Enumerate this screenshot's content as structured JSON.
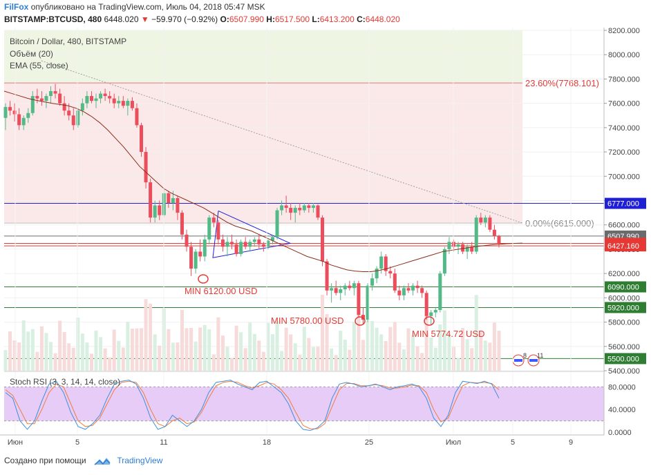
{
  "header": {
    "brand": "FilFox",
    "published": "опубликовано на TradingView.com, Июль 04, 2018 05:47 MSK",
    "symbol": "BITSTAMP:BTCUSD, 480",
    "last": "6448.020",
    "change_arrow": "▼",
    "change": "−59.970 (−0.92%)",
    "o_label": "O:",
    "o_value": "6507.990",
    "h_label": "H:",
    "h_value": "6517.500",
    "l_label": "L:",
    "l_value": "6413.200",
    "c_label": "C:",
    "c_value": "6448.020"
  },
  "legend": {
    "title": "Bitcoin / Dollar, 480, BITSTAMP",
    "volume": "Объём (20)",
    "ema": "EMA (55, close)",
    "stoch": "Stoch RSI (3, 3, 14, 14, close)"
  },
  "footer": {
    "made_with": "Создано при помощи",
    "tv": "TradingView"
  },
  "colors": {
    "up": "#53b987",
    "down": "#eb4d5c",
    "ema": "#8b2c1a",
    "blue_line": "#1f1fd6",
    "green_line": "#2e7d32",
    "red_line": "#e53935",
    "fib_fill_top": "#eef6e3",
    "fib_fill_bottom": "#fbe9e9",
    "stoch_fill": "#e6ccf7"
  },
  "chart_data": [
    {
      "type": "candlestick",
      "title": "Bitcoin / Dollar, 480, BITSTAMP",
      "ylim": [
        5400,
        8200
      ],
      "y_ticks": [
        "8200.000",
        "8000.000",
        "7800.000",
        "7600.000",
        "7400.000",
        "7200.000",
        "7000.000",
        "6800.000",
        "6600.000",
        "6400.000",
        "6200.000",
        "6000.000",
        "5800.000",
        "5600.000",
        "5400.000"
      ],
      "x_ticks": [
        "Июн",
        "5",
        "11",
        "18",
        "25",
        "Июл",
        "5",
        "9"
      ],
      "candles": [
        {
          "o": 7480,
          "h": 7600,
          "l": 7380,
          "c": 7570
        },
        {
          "o": 7570,
          "h": 7620,
          "l": 7500,
          "c": 7540
        },
        {
          "o": 7540,
          "h": 7600,
          "l": 7450,
          "c": 7510
        },
        {
          "o": 7510,
          "h": 7560,
          "l": 7380,
          "c": 7420
        },
        {
          "o": 7420,
          "h": 7500,
          "l": 7380,
          "c": 7480
        },
        {
          "o": 7480,
          "h": 7560,
          "l": 7440,
          "c": 7520
        },
        {
          "o": 7520,
          "h": 7700,
          "l": 7500,
          "c": 7660
        },
        {
          "o": 7660,
          "h": 7720,
          "l": 7600,
          "c": 7640
        },
        {
          "o": 7640,
          "h": 7700,
          "l": 7580,
          "c": 7620
        },
        {
          "o": 7620,
          "h": 7680,
          "l": 7560,
          "c": 7660
        },
        {
          "o": 7660,
          "h": 7740,
          "l": 7600,
          "c": 7700
        },
        {
          "o": 7700,
          "h": 7760,
          "l": 7640,
          "c": 7680
        },
        {
          "o": 7680,
          "h": 7720,
          "l": 7580,
          "c": 7600
        },
        {
          "o": 7600,
          "h": 7660,
          "l": 7500,
          "c": 7540
        },
        {
          "o": 7540,
          "h": 7600,
          "l": 7460,
          "c": 7500
        },
        {
          "o": 7500,
          "h": 7560,
          "l": 7380,
          "c": 7420
        },
        {
          "o": 7420,
          "h": 7560,
          "l": 7400,
          "c": 7540
        },
        {
          "o": 7540,
          "h": 7640,
          "l": 7500,
          "c": 7600
        },
        {
          "o": 7600,
          "h": 7700,
          "l": 7560,
          "c": 7660
        },
        {
          "o": 7660,
          "h": 7700,
          "l": 7600,
          "c": 7620
        },
        {
          "o": 7620,
          "h": 7680,
          "l": 7560,
          "c": 7640
        },
        {
          "o": 7640,
          "h": 7700,
          "l": 7600,
          "c": 7680
        },
        {
          "o": 7680,
          "h": 7720,
          "l": 7620,
          "c": 7660
        },
        {
          "o": 7660,
          "h": 7700,
          "l": 7600,
          "c": 7640
        },
        {
          "o": 7640,
          "h": 7680,
          "l": 7560,
          "c": 7600
        },
        {
          "o": 7600,
          "h": 7660,
          "l": 7560,
          "c": 7620
        },
        {
          "o": 7620,
          "h": 7660,
          "l": 7560,
          "c": 7580
        },
        {
          "o": 7580,
          "h": 7640,
          "l": 7500,
          "c": 7620
        },
        {
          "o": 7620,
          "h": 7650,
          "l": 7540,
          "c": 7560
        },
        {
          "o": 7560,
          "h": 7600,
          "l": 7400,
          "c": 7420
        },
        {
          "o": 7420,
          "h": 7440,
          "l": 7160,
          "c": 7200
        },
        {
          "o": 7200,
          "h": 7240,
          "l": 6900,
          "c": 6950
        },
        {
          "o": 6950,
          "h": 6980,
          "l": 6620,
          "c": 6660
        },
        {
          "o": 6660,
          "h": 6800,
          "l": 6620,
          "c": 6760
        },
        {
          "o": 6760,
          "h": 6800,
          "l": 6640,
          "c": 6680
        },
        {
          "o": 6680,
          "h": 6900,
          "l": 6660,
          "c": 6860
        },
        {
          "o": 6860,
          "h": 6880,
          "l": 6740,
          "c": 6780
        },
        {
          "o": 6780,
          "h": 6880,
          "l": 6720,
          "c": 6820
        },
        {
          "o": 6820,
          "h": 6840,
          "l": 6640,
          "c": 6700
        },
        {
          "o": 6700,
          "h": 6720,
          "l": 6480,
          "c": 6520
        },
        {
          "o": 6520,
          "h": 6560,
          "l": 6380,
          "c": 6420
        },
        {
          "o": 6420,
          "h": 6460,
          "l": 6180,
          "c": 6240
        },
        {
          "o": 6240,
          "h": 6400,
          "l": 6200,
          "c": 6380
        },
        {
          "o": 6380,
          "h": 6480,
          "l": 6300,
          "c": 6340
        },
        {
          "o": 6340,
          "h": 6520,
          "l": 6300,
          "c": 6480
        },
        {
          "o": 6480,
          "h": 6680,
          "l": 6440,
          "c": 6660
        },
        {
          "o": 6660,
          "h": 6700,
          "l": 6580,
          "c": 6620
        },
        {
          "o": 6620,
          "h": 6640,
          "l": 6440,
          "c": 6480
        },
        {
          "o": 6480,
          "h": 6520,
          "l": 6380,
          "c": 6420
        },
        {
          "o": 6420,
          "h": 6500,
          "l": 6340,
          "c": 6460
        },
        {
          "o": 6460,
          "h": 6520,
          "l": 6400,
          "c": 6440
        },
        {
          "o": 6440,
          "h": 6480,
          "l": 6340,
          "c": 6360
        },
        {
          "o": 6360,
          "h": 6480,
          "l": 6340,
          "c": 6460
        },
        {
          "o": 6460,
          "h": 6500,
          "l": 6400,
          "c": 6420
        },
        {
          "o": 6420,
          "h": 6480,
          "l": 6380,
          "c": 6460
        },
        {
          "o": 6460,
          "h": 6500,
          "l": 6420,
          "c": 6480
        },
        {
          "o": 6480,
          "h": 6520,
          "l": 6400,
          "c": 6440
        },
        {
          "o": 6440,
          "h": 6460,
          "l": 6380,
          "c": 6420
        },
        {
          "o": 6420,
          "h": 6480,
          "l": 6400,
          "c": 6470
        },
        {
          "o": 6470,
          "h": 6520,
          "l": 6440,
          "c": 6500
        },
        {
          "o": 6500,
          "h": 6740,
          "l": 6480,
          "c": 6720
        },
        {
          "o": 6720,
          "h": 6800,
          "l": 6680,
          "c": 6760
        },
        {
          "o": 6760,
          "h": 6840,
          "l": 6700,
          "c": 6740
        },
        {
          "o": 6740,
          "h": 6780,
          "l": 6640,
          "c": 6700
        },
        {
          "o": 6700,
          "h": 6760,
          "l": 6620,
          "c": 6740
        },
        {
          "o": 6740,
          "h": 6780,
          "l": 6680,
          "c": 6720
        },
        {
          "o": 6720,
          "h": 6780,
          "l": 6700,
          "c": 6760
        },
        {
          "o": 6760,
          "h": 6780,
          "l": 6700,
          "c": 6740
        },
        {
          "o": 6740,
          "h": 6780,
          "l": 6700,
          "c": 6760
        },
        {
          "o": 6760,
          "h": 6770,
          "l": 6640,
          "c": 6660
        },
        {
          "o": 6660,
          "h": 6680,
          "l": 6260,
          "c": 6300
        },
        {
          "o": 6300,
          "h": 6320,
          "l": 6020,
          "c": 6060
        },
        {
          "o": 6060,
          "h": 6120,
          "l": 5960,
          "c": 6080
        },
        {
          "o": 6080,
          "h": 6140,
          "l": 6020,
          "c": 6040
        },
        {
          "o": 6040,
          "h": 6100,
          "l": 5980,
          "c": 6070
        },
        {
          "o": 6070,
          "h": 6120,
          "l": 6020,
          "c": 6100
        },
        {
          "o": 6100,
          "h": 6140,
          "l": 6060,
          "c": 6080
        },
        {
          "o": 6080,
          "h": 6140,
          "l": 6020,
          "c": 6120
        },
        {
          "o": 6120,
          "h": 6140,
          "l": 5840,
          "c": 5860
        },
        {
          "o": 5860,
          "h": 5920,
          "l": 5780,
          "c": 5820
        },
        {
          "o": 5820,
          "h": 6120,
          "l": 5800,
          "c": 6100
        },
        {
          "o": 6100,
          "h": 6200,
          "l": 6060,
          "c": 6160
        },
        {
          "o": 6160,
          "h": 6260,
          "l": 6120,
          "c": 6240
        },
        {
          "o": 6240,
          "h": 6380,
          "l": 6200,
          "c": 6340
        },
        {
          "o": 6340,
          "h": 6360,
          "l": 6180,
          "c": 6220
        },
        {
          "o": 6220,
          "h": 6260,
          "l": 6160,
          "c": 6200
        },
        {
          "o": 6200,
          "h": 6240,
          "l": 6040,
          "c": 6060
        },
        {
          "o": 6060,
          "h": 6100,
          "l": 5980,
          "c": 6020
        },
        {
          "o": 6020,
          "h": 6100,
          "l": 5980,
          "c": 6080
        },
        {
          "o": 6080,
          "h": 6120,
          "l": 6040,
          "c": 6060
        },
        {
          "o": 6060,
          "h": 6120,
          "l": 6020,
          "c": 6100
        },
        {
          "o": 6100,
          "h": 6140,
          "l": 6040,
          "c": 6080
        },
        {
          "o": 6080,
          "h": 6100,
          "l": 6000,
          "c": 6040
        },
        {
          "o": 6040,
          "h": 6060,
          "l": 5820,
          "c": 5850
        },
        {
          "o": 5850,
          "h": 5900,
          "l": 5774,
          "c": 5880
        },
        {
          "o": 5880,
          "h": 5920,
          "l": 5840,
          "c": 5900
        },
        {
          "o": 5900,
          "h": 6220,
          "l": 5880,
          "c": 6200
        },
        {
          "o": 6200,
          "h": 6420,
          "l": 6180,
          "c": 6400
        },
        {
          "o": 6400,
          "h": 6500,
          "l": 6360,
          "c": 6460
        },
        {
          "o": 6460,
          "h": 6480,
          "l": 6380,
          "c": 6420
        },
        {
          "o": 6420,
          "h": 6460,
          "l": 6360,
          "c": 6440
        },
        {
          "o": 6440,
          "h": 6460,
          "l": 6360,
          "c": 6380
        },
        {
          "o": 6380,
          "h": 6440,
          "l": 6320,
          "c": 6420
        },
        {
          "o": 6420,
          "h": 6460,
          "l": 6360,
          "c": 6380
        },
        {
          "o": 6380,
          "h": 6680,
          "l": 6360,
          "c": 6660
        },
        {
          "o": 6660,
          "h": 6700,
          "l": 6600,
          "c": 6620
        },
        {
          "o": 6620,
          "h": 6680,
          "l": 6580,
          "c": 6660
        },
        {
          "o": 6660,
          "h": 6680,
          "l": 6540,
          "c": 6560
        },
        {
          "o": 6560,
          "h": 6600,
          "l": 6480,
          "c": 6508
        },
        {
          "o": 6508,
          "h": 6518,
          "l": 6413,
          "c": 6448
        }
      ],
      "ema": [
        7700,
        7680,
        7660,
        7640,
        7625,
        7612,
        7600,
        7590,
        7580,
        7560,
        7530,
        7490,
        7440,
        7380,
        7310,
        7240,
        7160,
        7080,
        7020,
        6960,
        6900,
        6860,
        6830,
        6800,
        6770,
        6740,
        6700,
        6660,
        6620,
        6590,
        6570,
        6550,
        6520,
        6490,
        6460,
        6430,
        6400,
        6370,
        6340,
        6320,
        6300,
        6270,
        6250,
        6230,
        6220,
        6215,
        6215,
        6225,
        6240,
        6260,
        6280,
        6300,
        6320,
        6340,
        6360,
        6380,
        6390,
        6400,
        6410,
        6420,
        6428,
        6435,
        6440,
        6445,
        6448,
        6450
      ],
      "price_lines": [
        {
          "label": "6777.000",
          "value": 6777,
          "color": "#1f1fd6"
        },
        {
          "label": "6507.990",
          "value": 6508,
          "color": "#6b6b6b"
        },
        {
          "label": "6448.020",
          "value": 6448,
          "color": "#e53935"
        },
        {
          "label": "6427.160",
          "value": 6427,
          "color": "#e53935"
        },
        {
          "label": "6090.000",
          "value": 6090,
          "color": "#2e7d32"
        },
        {
          "label": "5920.000",
          "value": 5920,
          "color": "#2e7d32"
        },
        {
          "label": "5500.000",
          "value": 5500,
          "color": "#2e7d32"
        }
      ],
      "fib_levels": [
        {
          "label": "23.60%(7768.101)",
          "value": 7768
        },
        {
          "label": "0.00%(6615.000)",
          "value": 6615
        }
      ],
      "annotations": [
        {
          "text": "MIN 6120.00 USD",
          "value": 6120
        },
        {
          "text": "MIN 5780.00 USD",
          "value": 5780
        },
        {
          "text": "MIN 5774.72 USD",
          "value": 5774.72
        }
      ]
    },
    {
      "type": "line",
      "title": "Stoch RSI (3, 3, 14, 14, close)",
      "ylim": [
        0,
        100
      ],
      "y_ticks": [
        "80.0000",
        "40.0000",
        "0.0000"
      ],
      "bands": [
        20,
        80
      ],
      "k": [
        70,
        60,
        20,
        5,
        20,
        55,
        85,
        90,
        70,
        35,
        10,
        5,
        15,
        30,
        60,
        85,
        90,
        92,
        85,
        60,
        25,
        5,
        10,
        30,
        20,
        10,
        20,
        40,
        70,
        88,
        90,
        92,
        85,
        80,
        75,
        88,
        90,
        80,
        70,
        50,
        20,
        5,
        3,
        8,
        20,
        60,
        85,
        88,
        85,
        80,
        82,
        85,
        80,
        75,
        80,
        82,
        85,
        80,
        60,
        25,
        10,
        30,
        70,
        90,
        88,
        86,
        90,
        85,
        60
      ],
      "d": [
        75,
        65,
        40,
        15,
        15,
        40,
        70,
        85,
        80,
        50,
        20,
        10,
        12,
        25,
        50,
        75,
        88,
        90,
        88,
        70,
        40,
        15,
        10,
        20,
        25,
        15,
        18,
        35,
        60,
        82,
        88,
        90,
        88,
        82,
        78,
        82,
        88,
        85,
        75,
        60,
        35,
        12,
        6,
        6,
        15,
        45,
        75,
        86,
        86,
        82,
        82,
        84,
        82,
        78,
        78,
        80,
        83,
        82,
        70,
        40,
        18,
        25,
        55,
        82,
        88,
        87,
        88,
        86,
        75
      ]
    }
  ]
}
